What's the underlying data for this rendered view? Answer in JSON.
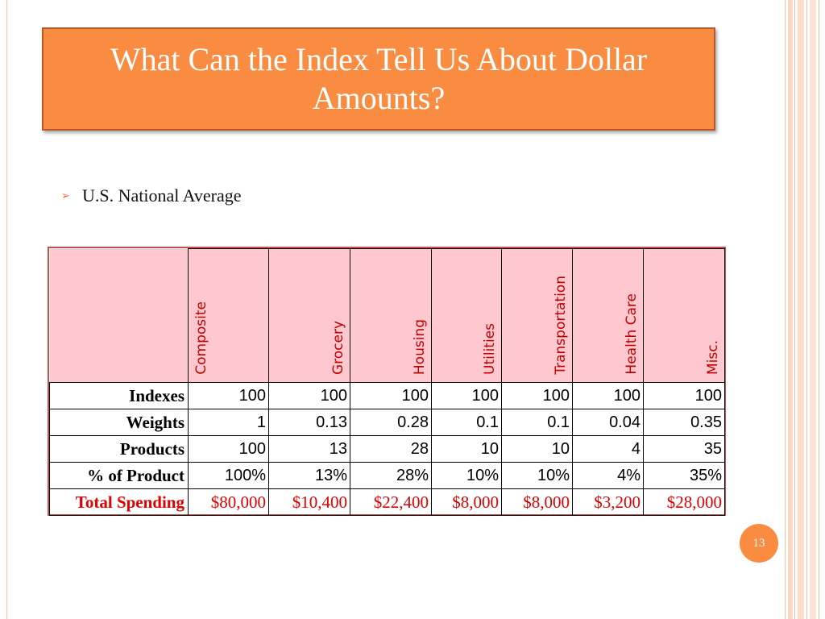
{
  "title": "What Can the Index Tell Us About Dollar Amounts?",
  "bullet": "U.S. National Average",
  "page_number": "13",
  "table": {
    "columns": [
      "Composite",
      "Grocery",
      "Housing",
      "Utilities",
      "Transportation",
      "Health Care",
      "Misc."
    ],
    "rows": [
      {
        "label": "Indexes",
        "values": [
          "100",
          "100",
          "100",
          "100",
          "100",
          "100",
          "100"
        ]
      },
      {
        "label": "Weights",
        "values": [
          "1",
          "0.13",
          "0.28",
          "0.1",
          "0.1",
          "0.04",
          "0.35"
        ]
      },
      {
        "label": "Products",
        "values": [
          "100",
          "13",
          "28",
          "10",
          "10",
          "4",
          "35"
        ]
      },
      {
        "label": "% of Product",
        "values": [
          "100%",
          "13%",
          "28%",
          "10%",
          "10%",
          "4%",
          "35%"
        ]
      },
      {
        "label": "Total Spending",
        "values": [
          "$80,000",
          "$10,400",
          "$22,400",
          "$8,000",
          "$8,000",
          "$3,200",
          "$28,000"
        ]
      }
    ]
  },
  "colors": {
    "accent": "#f98c41",
    "header_fill": "#ffc7ce",
    "header_text": "#c00000",
    "total_text": "#e00000"
  }
}
